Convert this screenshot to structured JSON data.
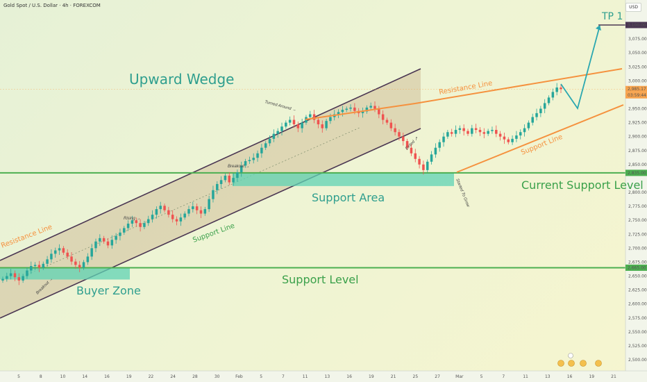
{
  "header": {
    "symbol_title": "Gold Spot / U.S. Dollar · 4h · FOREXCOM",
    "currency": "USD"
  },
  "colors": {
    "up_candle": "#26a69a",
    "down_candle": "#ef5350",
    "resistance": "#f5913e",
    "support_green": "#4caf50",
    "wedge_border": "#4a3652",
    "wedge_fill": "#c9b48e",
    "zone_fill": "#5fd3b4",
    "text_teal": "#2e9e8e",
    "text_green": "#3aa04a",
    "projection": "#2aa7b0",
    "price_badge": "#f7a34d"
  },
  "annotations": {
    "upward_wedge": "Upward Wedge",
    "tp1": "TP 1",
    "resistance_line_top": "Resistance Line",
    "resistance_line_left": "Resistance Line",
    "support_line_wedge": "Support Line",
    "support_line_right": "Support Line",
    "support_area": "Support Area",
    "current_support_level": "Current Support Level",
    "support_level": "Support Level",
    "buyer_zone": "Buyer Zone",
    "turned_around": "Turned Around",
    "breakout_upper": "Breakout",
    "breakout_lower": "Breakout",
    "rising": "Rising",
    "exited": "Exited",
    "started_to_grow": "Started To Grow"
  },
  "price_axis": {
    "ticks": [
      "3,075.00",
      "3,050.00",
      "3,025.00",
      "3,000.00",
      "2,950.00",
      "2,925.00",
      "2,900.00",
      "2,875.00",
      "2,850.00",
      "2,800.00",
      "2,775.00",
      "2,750.00",
      "2,725.00",
      "2,700.00",
      "2,675.00",
      "2,650.00",
      "2,625.00",
      "2,600.00",
      "2,575.00",
      "2,550.00",
      "2,525.00",
      "2,500.00"
    ],
    "badges": {
      "tp_level": "3,100.00",
      "current_price": "2,985.17",
      "countdown": "03:59:44",
      "current_support": "2,835.00",
      "support_level": "2,665.00"
    }
  },
  "time_axis": {
    "labels": [
      "5",
      "8",
      "10",
      "14",
      "16",
      "19",
      "22",
      "24",
      "28",
      "30",
      "Feb",
      "5",
      "7",
      "11",
      "13",
      "16",
      "19",
      "21",
      "25",
      "27",
      "Mar",
      "5",
      "7",
      "11",
      "13",
      "16",
      "19",
      "21"
    ]
  },
  "chart_data": {
    "type": "candlestick",
    "symbol": "Gold Spot / U.S. Dollar",
    "timeframe": "4h",
    "ylim": [
      2490,
      3115
    ],
    "levels": {
      "tp1": 3100,
      "current_price": 2985.17,
      "current_support_level": 2835,
      "support_level": 2665
    },
    "zones": {
      "support_area": [
        2815,
        2835
      ],
      "buyer_zone": [
        2645,
        2665
      ]
    },
    "closes": [
      2645,
      2650,
      2655,
      2648,
      2642,
      2650,
      2660,
      2668,
      2670,
      2665,
      2672,
      2680,
      2690,
      2696,
      2700,
      2692,
      2685,
      2676,
      2670,
      2665,
      2675,
      2685,
      2700,
      2712,
      2718,
      2712,
      2705,
      2715,
      2722,
      2728,
      2736,
      2744,
      2750,
      2745,
      2738,
      2745,
      2752,
      2760,
      2770,
      2776,
      2768,
      2760,
      2752,
      2748,
      2755,
      2762,
      2770,
      2775,
      2768,
      2762,
      2770,
      2788,
      2804,
      2815,
      2822,
      2830,
      2818,
      2826,
      2836,
      2848,
      2856,
      2858,
      2862,
      2870,
      2880,
      2888,
      2896,
      2905,
      2910,
      2918,
      2925,
      2930,
      2922,
      2915,
      2925,
      2935,
      2940,
      2930,
      2922,
      2915,
      2928,
      2935,
      2940,
      2944,
      2948,
      2950,
      2952,
      2946,
      2942,
      2945,
      2952,
      2955,
      2950,
      2940,
      2930,
      2925,
      2915,
      2908,
      2900,
      2892,
      2880,
      2870,
      2860,
      2850,
      2840,
      2855,
      2868,
      2880,
      2890,
      2900,
      2908,
      2905,
      2912,
      2915,
      2910,
      2905,
      2915,
      2912,
      2908,
      2905,
      2910,
      2912,
      2905,
      2900,
      2895,
      2890,
      2896,
      2902,
      2908,
      2915,
      2925,
      2935,
      2942,
      2950,
      2960,
      2970,
      2980,
      2988,
      2985
    ]
  }
}
